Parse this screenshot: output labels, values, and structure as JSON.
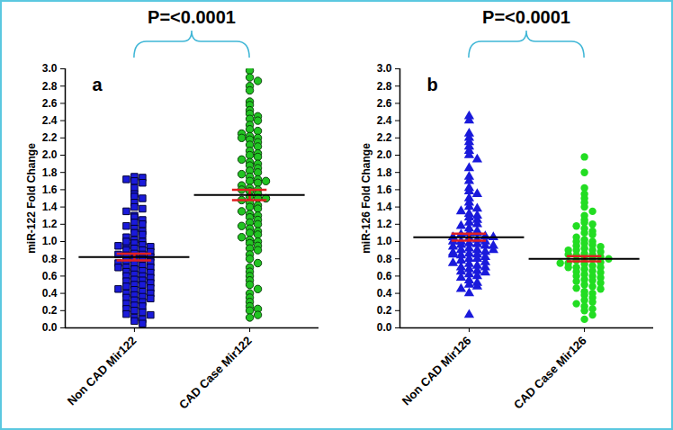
{
  "chart_data": [
    {
      "type": "scatter",
      "panel_label": "a",
      "annotation": "P=<0.0001",
      "y_label": "miR-122 Fold Change",
      "ylim": [
        0,
        3
      ],
      "yticks": [
        {
          "value": 0,
          "label": "0.0"
        },
        0.2,
        0.4,
        0.6,
        0.8,
        {
          "value": 1,
          "label": "1.0"
        },
        1.2,
        1.4,
        1.6,
        1.8,
        {
          "value": 2,
          "label": "2.0"
        },
        2.2,
        2.4,
        2.6,
        2.8,
        {
          "value": 3,
          "label": "3.0"
        }
      ],
      "series": [
        {
          "name": "Non CAD Mir122",
          "color": "#1a1adb",
          "marker": "square",
          "mean": 0.82,
          "error": 0.04,
          "values": [
            1.75,
            1.74,
            1.72,
            1.7,
            1.68,
            1.62,
            1.55,
            1.52,
            1.5,
            1.45,
            1.4,
            1.38,
            1.35,
            1.3,
            1.28,
            1.25,
            1.22,
            1.2,
            1.18,
            1.15,
            1.12,
            1.1,
            1.08,
            1.05,
            1.02,
            1.0,
            0.98,
            0.96,
            0.95,
            0.94,
            0.92,
            0.9,
            0.9,
            0.88,
            0.86,
            0.85,
            0.84,
            0.82,
            0.8,
            0.8,
            0.78,
            0.76,
            0.75,
            0.74,
            0.72,
            0.7,
            0.7,
            0.68,
            0.66,
            0.65,
            0.64,
            0.62,
            0.6,
            0.6,
            0.58,
            0.56,
            0.55,
            0.54,
            0.52,
            0.5,
            0.5,
            0.48,
            0.46,
            0.45,
            0.44,
            0.42,
            0.4,
            0.4,
            0.38,
            0.36,
            0.35,
            0.34,
            0.32,
            0.3,
            0.28,
            0.26,
            0.25,
            0.22,
            0.2,
            0.18,
            0.16,
            0.15,
            0.12,
            0.1,
            0.08,
            0.05,
            0.85,
            0.95,
            1.0,
            0.7
          ]
        },
        {
          "name": "CAD Case Mir122",
          "color": "#22c422",
          "marker": "circle",
          "mean": 1.54,
          "error": 0.06,
          "values": [
            2.98,
            2.9,
            2.86,
            2.8,
            2.75,
            2.62,
            2.58,
            2.52,
            2.48,
            2.45,
            2.42,
            2.4,
            2.35,
            2.3,
            2.28,
            2.25,
            2.22,
            2.2,
            2.18,
            2.15,
            2.12,
            2.1,
            2.05,
            2.02,
            2.0,
            1.98,
            1.95,
            1.92,
            1.9,
            1.88,
            1.85,
            1.82,
            1.8,
            1.78,
            1.75,
            1.72,
            1.7,
            1.68,
            1.65,
            1.62,
            1.6,
            1.58,
            1.55,
            1.52,
            1.5,
            1.48,
            1.45,
            1.42,
            1.4,
            1.38,
            1.35,
            1.32,
            1.3,
            1.28,
            1.25,
            1.22,
            1.2,
            1.18,
            1.15,
            1.12,
            1.1,
            1.08,
            1.05,
            1.02,
            1.0,
            0.98,
            0.95,
            0.92,
            0.9,
            0.85,
            0.8,
            0.75,
            0.7,
            0.65,
            0.6,
            0.55,
            0.5,
            0.45,
            0.4,
            0.35,
            0.3,
            0.25,
            0.22,
            0.2,
            0.15,
            0.12,
            1.6,
            1.7,
            2.2,
            1.5
          ]
        }
      ]
    },
    {
      "type": "scatter",
      "panel_label": "b",
      "annotation": "P=<0.0001",
      "y_label": "miR-126 Fold Change",
      "ylim": [
        0,
        3
      ],
      "yticks": [
        {
          "value": 0,
          "label": "0.0"
        },
        0.2,
        0.4,
        0.6,
        0.8,
        {
          "value": 1,
          "label": "1.0"
        },
        1.2,
        1.4,
        1.6,
        1.8,
        {
          "value": 2,
          "label": "2.0"
        },
        2.2,
        2.4,
        2.6,
        2.8,
        {
          "value": 3,
          "label": "3.0"
        }
      ],
      "series": [
        {
          "name": "Non CAD Mir126",
          "color": "#1a1adb",
          "marker": "triangle",
          "mean": 1.05,
          "error": 0.04,
          "values": [
            2.45,
            2.4,
            2.25,
            2.2,
            2.15,
            2.1,
            2.05,
            2.0,
            1.95,
            1.85,
            1.75,
            1.7,
            1.62,
            1.58,
            1.55,
            1.5,
            1.45,
            1.4,
            1.38,
            1.35,
            1.32,
            1.3,
            1.28,
            1.25,
            1.22,
            1.2,
            1.18,
            1.15,
            1.12,
            1.1,
            1.1,
            1.08,
            1.06,
            1.05,
            1.04,
            1.02,
            1.0,
            1.0,
            0.98,
            0.97,
            0.96,
            0.95,
            0.94,
            0.92,
            0.9,
            0.9,
            0.88,
            0.87,
            0.86,
            0.85,
            0.84,
            0.82,
            0.8,
            0.8,
            0.78,
            0.76,
            0.75,
            0.74,
            0.72,
            0.7,
            0.7,
            0.68,
            0.66,
            0.65,
            0.64,
            0.62,
            0.6,
            0.58,
            0.55,
            0.52,
            0.5,
            0.48,
            0.45,
            0.4,
            0.15,
            0.9,
            1.0,
            1.05,
            0.95,
            0.85
          ]
        },
        {
          "name": "CAD Case Mir126",
          "color": "#22dd22",
          "marker": "circle",
          "mean": 0.8,
          "error": 0.03,
          "values": [
            1.98,
            1.8,
            1.62,
            1.55,
            1.5,
            1.45,
            1.4,
            1.35,
            1.3,
            1.25,
            1.22,
            1.2,
            1.18,
            1.15,
            1.12,
            1.1,
            1.08,
            1.05,
            1.02,
            1.0,
            1.0,
            0.98,
            0.96,
            0.95,
            0.94,
            0.92,
            0.9,
            0.9,
            0.88,
            0.86,
            0.85,
            0.84,
            0.82,
            0.8,
            0.8,
            0.78,
            0.76,
            0.75,
            0.74,
            0.72,
            0.7,
            0.7,
            0.68,
            0.66,
            0.65,
            0.64,
            0.62,
            0.6,
            0.6,
            0.58,
            0.56,
            0.55,
            0.54,
            0.52,
            0.5,
            0.48,
            0.46,
            0.45,
            0.42,
            0.4,
            0.38,
            0.35,
            0.32,
            0.3,
            0.28,
            0.25,
            0.22,
            0.2,
            0.15,
            0.1,
            0.8,
            0.85,
            0.75,
            0.9,
            0.7
          ]
        }
      ]
    }
  ]
}
